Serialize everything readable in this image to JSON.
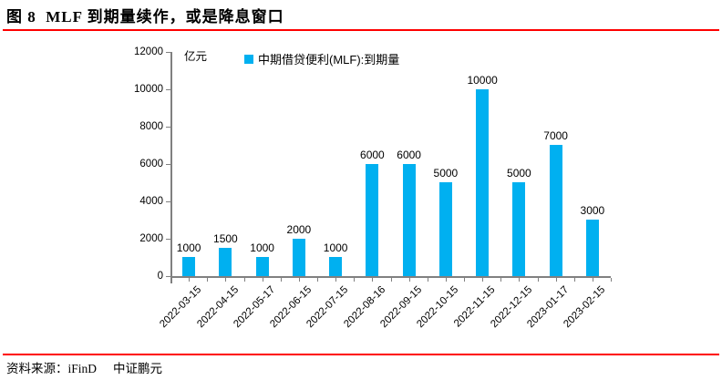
{
  "title": {
    "text": "图 8  MLF 到期量续作，或是降息窗口"
  },
  "footer": {
    "source": "资料来源：iFinD",
    "company": "中证鹏元"
  },
  "colors": {
    "rule_red": "#fe0000",
    "bar_blue": "#00b0f0",
    "axis_gray": "#808080",
    "text_black": "#000000"
  },
  "chart_data": {
    "type": "bar",
    "title": "",
    "unit_label": "亿元",
    "legend": "中期借贷便利(MLF):到期量",
    "legend_position": "top",
    "categories": [
      "2022-03-15",
      "2022-04-15",
      "2022-05-17",
      "2022-06-15",
      "2022-07-15",
      "2022-08-16",
      "2022-09-15",
      "2022-10-15",
      "2022-11-15",
      "2022-12-15",
      "2023-01-17",
      "2023-02-15"
    ],
    "values": [
      1000,
      1500,
      1000,
      2000,
      1000,
      6000,
      6000,
      5000,
      10000,
      5000,
      7000,
      3000
    ],
    "data_labels": [
      "1000",
      "1500",
      "1000",
      "2000",
      "1000",
      "6000",
      "6000",
      "5000",
      "10000",
      "5000",
      "7000",
      "3000"
    ],
    "xlabel": "",
    "ylabel": "亿元",
    "ylim": [
      0,
      12000
    ],
    "yticks": [
      0,
      2000,
      4000,
      6000,
      8000,
      10000,
      12000
    ],
    "grid": false,
    "bar_color": "#00b0f0"
  }
}
